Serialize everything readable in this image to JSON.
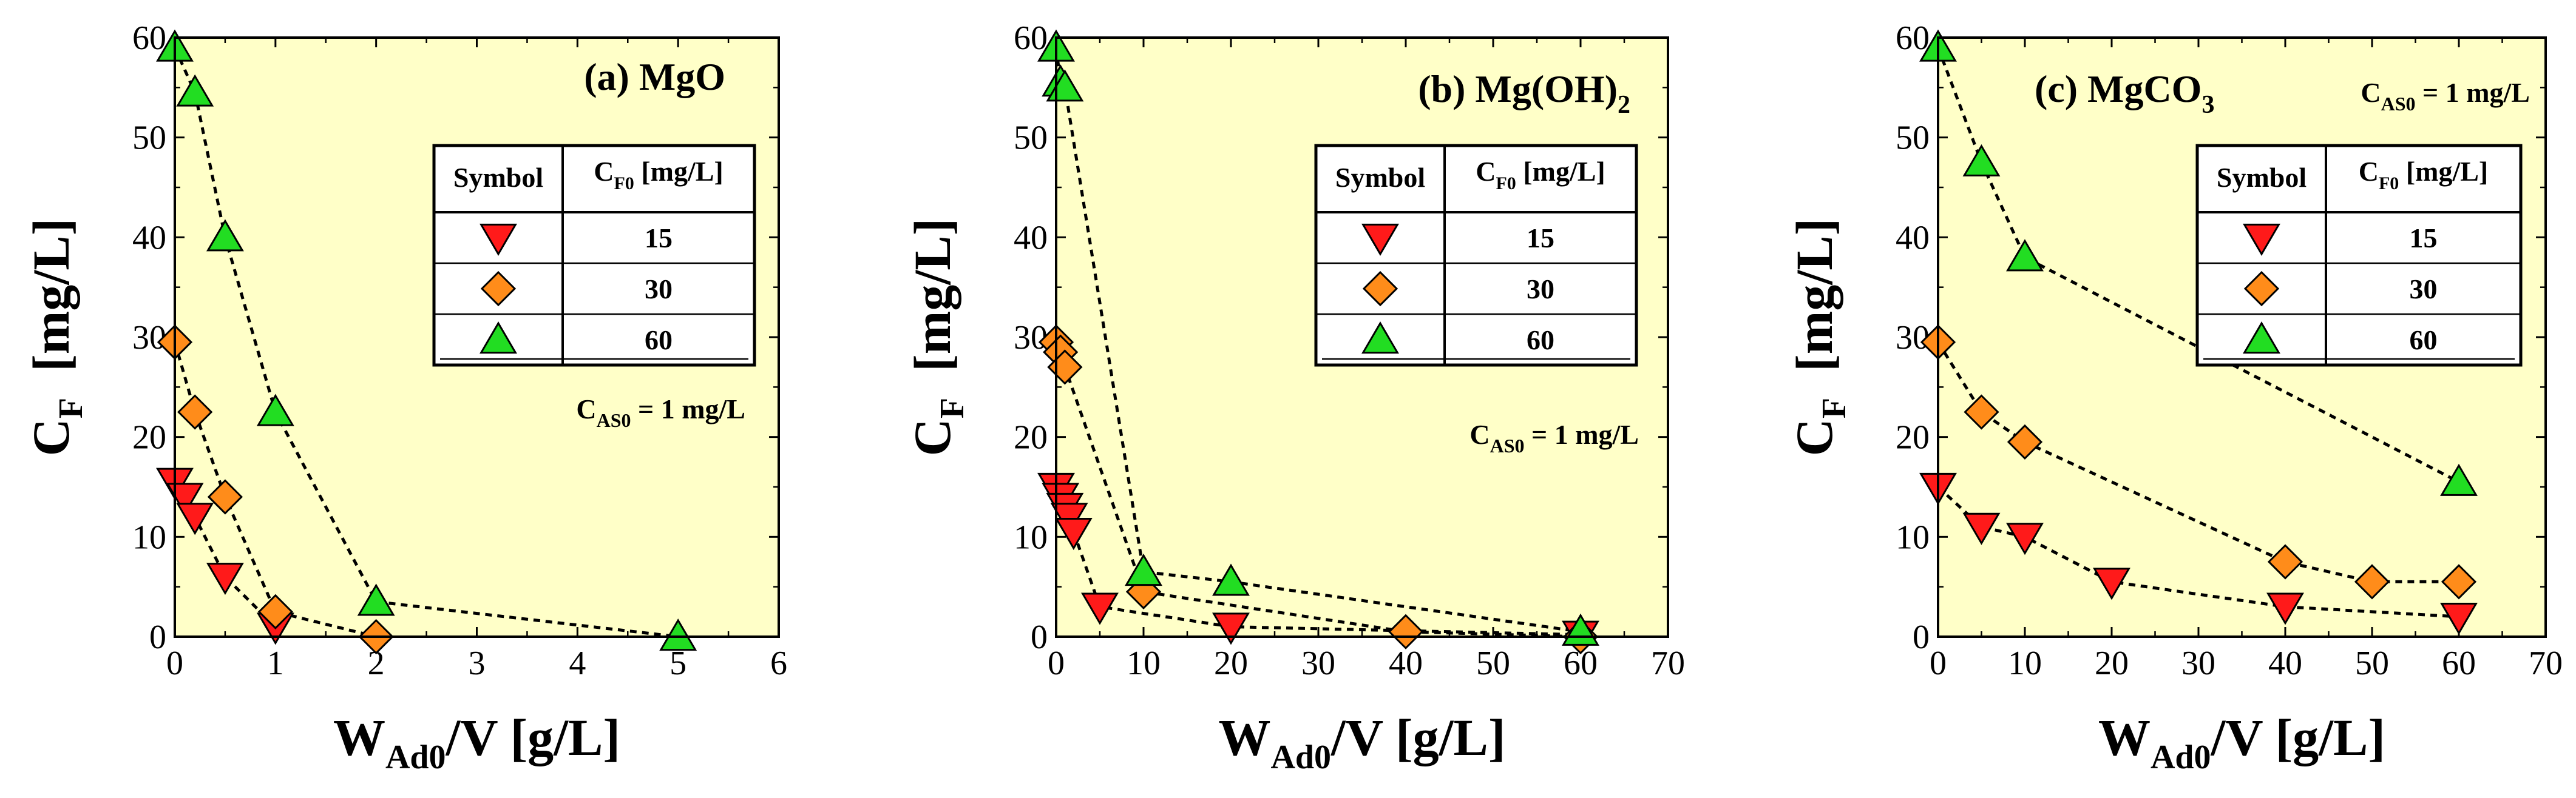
{
  "chart_data": [
    {
      "type": "scatter",
      "title": "(a) MgO",
      "title_main": "(a) MgO",
      "title_sub": "",
      "xlabel_main": "W",
      "xlabel_sub": "Ad0",
      "xlabel_rest": "/V  [g/L]",
      "ylabel_main": "C",
      "ylabel_sub": "F",
      "ylabel_rest": "[mg/L]",
      "xlim": [
        0,
        6
      ],
      "ylim": [
        0,
        60
      ],
      "xticks": [
        "0",
        "1",
        "2",
        "3",
        "4",
        "5",
        "6"
      ],
      "yticks": [
        "0",
        "10",
        "20",
        "30",
        "40",
        "50",
        "60"
      ],
      "note_main": "C",
      "note_sub": "AS0",
      "note_rest": " = 1 mg/L",
      "note_position": "right-middle",
      "legend_position": "top-right",
      "legend": {
        "col1": "Symbol",
        "col2_main": "C",
        "col2_sub": "F0",
        "col2_rest": " [mg/L]",
        "rows": [
          "15",
          "30",
          "60"
        ]
      },
      "series": [
        {
          "name": "15",
          "marker": "triangle-down",
          "color": "#ff1a1a",
          "x": [
            0,
            0.1,
            0.2,
            0.5,
            1.0
          ],
          "y": [
            15.5,
            14,
            12,
            6,
            1
          ]
        },
        {
          "name": "30",
          "marker": "diamond",
          "color": "#ff8c1a",
          "x": [
            0,
            0.2,
            0.5,
            1.0,
            2.0
          ],
          "y": [
            29.5,
            22.5,
            14,
            2.5,
            0
          ]
        },
        {
          "name": "60",
          "marker": "triangle-up",
          "color": "#22dd22",
          "x": [
            0,
            0.2,
            0.5,
            1.0,
            2.0,
            5.0
          ],
          "y": [
            59,
            54.5,
            40,
            22.5,
            3.5,
            0
          ]
        }
      ]
    },
    {
      "type": "scatter",
      "title": "(b) Mg(OH)2",
      "title_main": "(b) Mg(OH)",
      "title_sub": "2",
      "xlabel_main": "W",
      "xlabel_sub": "Ad0",
      "xlabel_rest": "/V  [g/L]",
      "ylabel_main": "C",
      "ylabel_sub": "F",
      "ylabel_rest": "[mg/L]",
      "xlim": [
        0,
        70
      ],
      "ylim": [
        0,
        60
      ],
      "xticks": [
        "0",
        "10",
        "20",
        "30",
        "40",
        "50",
        "60",
        "70"
      ],
      "yticks": [
        "0",
        "10",
        "20",
        "30",
        "40",
        "50",
        "60"
      ],
      "note_main": "C",
      "note_sub": "AS0",
      "note_rest": " = 1 mg/L",
      "note_position": "right-middle",
      "legend_position": "top-right",
      "legend": {
        "col1": "Symbol",
        "col2_main": "C",
        "col2_sub": "F0",
        "col2_rest": " [mg/L]",
        "rows": [
          "15",
          "30",
          "60"
        ]
      },
      "series": [
        {
          "name": "15",
          "marker": "triangle-down",
          "color": "#ff1a1a",
          "x": [
            0,
            0.5,
            1,
            1.5,
            2,
            5,
            20,
            60
          ],
          "y": [
            15,
            14,
            13,
            12,
            10.5,
            3,
            1,
            0.2
          ]
        },
        {
          "name": "30",
          "marker": "diamond",
          "color": "#ff8c1a",
          "x": [
            0,
            0.5,
            1,
            10,
            40,
            60
          ],
          "y": [
            29.5,
            28.5,
            27,
            4.5,
            0.5,
            0
          ]
        },
        {
          "name": "60",
          "marker": "triangle-up",
          "color": "#22dd22",
          "x": [
            0,
            0.5,
            1,
            10,
            20,
            60
          ],
          "y": [
            59,
            55.5,
            55,
            6.5,
            5.5,
            0.5
          ]
        }
      ]
    },
    {
      "type": "scatter",
      "title": "(c) MgCO3",
      "title_main": "(c) MgCO",
      "title_sub": "3",
      "xlabel_main": "W",
      "xlabel_sub": "Ad0",
      "xlabel_rest": "/V  [g/L]",
      "ylabel_main": "C",
      "ylabel_sub": "F",
      "ylabel_rest": "[mg/L]",
      "xlim": [
        0,
        70
      ],
      "ylim": [
        0,
        60
      ],
      "xticks": [
        "0",
        "10",
        "20",
        "30",
        "40",
        "50",
        "60",
        "70"
      ],
      "yticks": [
        "0",
        "10",
        "20",
        "30",
        "40",
        "50",
        "60"
      ],
      "note_main": "C",
      "note_sub": "AS0",
      "note_rest": " = 1 mg/L",
      "note_position": "top-right",
      "legend_position": "top-right",
      "legend": {
        "col1": "Symbol",
        "col2_main": "C",
        "col2_sub": "F0",
        "col2_rest": " [mg/L]",
        "rows": [
          "15",
          "30",
          "60"
        ]
      },
      "series": [
        {
          "name": "15",
          "marker": "triangle-down",
          "color": "#ff1a1a",
          "x": [
            0,
            5,
            10,
            20,
            40,
            60
          ],
          "y": [
            15,
            11,
            10,
            5.5,
            3,
            2
          ]
        },
        {
          "name": "30",
          "marker": "diamond",
          "color": "#ff8c1a",
          "x": [
            0,
            5,
            10,
            40,
            50,
            60
          ],
          "y": [
            29.5,
            22.5,
            19.5,
            7.5,
            5.5,
            5.5
          ]
        },
        {
          "name": "60",
          "marker": "triangle-up",
          "color": "#22dd22",
          "x": [
            0,
            5,
            10,
            60
          ],
          "y": [
            59,
            47.5,
            38,
            15.5
          ]
        }
      ]
    }
  ]
}
